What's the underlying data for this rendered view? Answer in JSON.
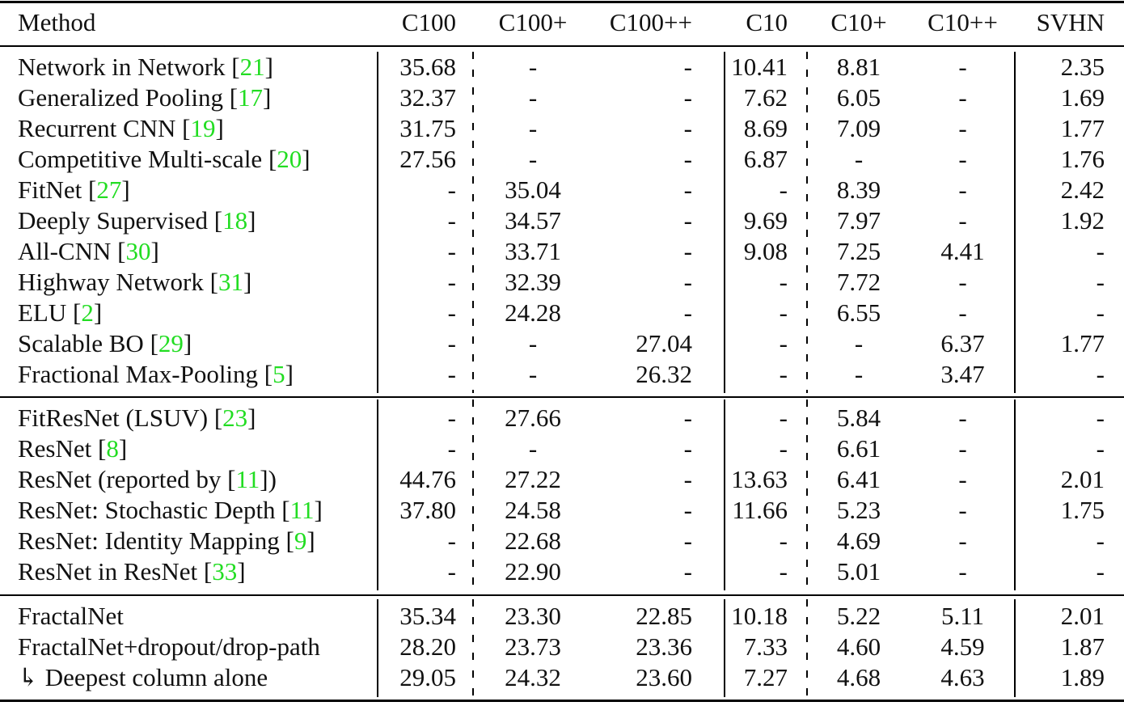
{
  "table": {
    "headers": [
      "Method",
      "C100",
      "C100+",
      "C100++",
      "C10",
      "C10+",
      "C10++",
      "SVHN"
    ],
    "cite_color": "#22dd22",
    "sections": [
      {
        "rows": [
          {
            "method": "Network in Network [",
            "cite": "21",
            "suffix": "]",
            "values": [
              "35.68",
              "-",
              "-",
              "10.41",
              "8.81",
              "-",
              "2.35"
            ]
          },
          {
            "method": "Generalized Pooling [",
            "cite": "17",
            "suffix": "]",
            "values": [
              "32.37",
              "-",
              "-",
              "7.62",
              "6.05",
              "-",
              "1.69"
            ]
          },
          {
            "method": "Recurrent CNN [",
            "cite": "19",
            "suffix": "]",
            "values": [
              "31.75",
              "-",
              "-",
              "8.69",
              "7.09",
              "-",
              "1.77"
            ]
          },
          {
            "method": "Competitive Multi-scale [",
            "cite": "20",
            "suffix": "]",
            "values": [
              "27.56",
              "-",
              "-",
              "6.87",
              "-",
              "-",
              "1.76"
            ]
          },
          {
            "method": "FitNet [",
            "cite": "27",
            "suffix": "]",
            "values": [
              "-",
              "35.04",
              "-",
              "-",
              "8.39",
              "-",
              "2.42"
            ]
          },
          {
            "method": "Deeply Supervised [",
            "cite": "18",
            "suffix": "]",
            "values": [
              "-",
              "34.57",
              "-",
              "9.69",
              "7.97",
              "-",
              "1.92"
            ]
          },
          {
            "method": "All-CNN [",
            "cite": "30",
            "suffix": "]",
            "values": [
              "-",
              "33.71",
              "-",
              "9.08",
              "7.25",
              "4.41",
              "-"
            ]
          },
          {
            "method": "Highway Network [",
            "cite": "31",
            "suffix": "]",
            "values": [
              "-",
              "32.39",
              "-",
              "-",
              "7.72",
              "-",
              "-"
            ]
          },
          {
            "method": "ELU [",
            "cite": "2",
            "suffix": "]",
            "values": [
              "-",
              "24.28",
              "-",
              "-",
              "6.55",
              "-",
              "-"
            ]
          },
          {
            "method": "Scalable BO [",
            "cite": "29",
            "suffix": "]",
            "values": [
              "-",
              "-",
              "27.04",
              "-",
              "-",
              "6.37",
              "1.77"
            ]
          },
          {
            "method": "Fractional Max-Pooling [",
            "cite": "5",
            "suffix": "]",
            "values": [
              "-",
              "-",
              "26.32",
              "-",
              "-",
              "3.47",
              "-"
            ]
          }
        ]
      },
      {
        "rows": [
          {
            "method": "FitResNet (LSUV) [",
            "cite": "23",
            "suffix": "]",
            "values": [
              "-",
              "27.66",
              "-",
              "-",
              "5.84",
              "-",
              "-"
            ]
          },
          {
            "method": "ResNet [",
            "cite": "8",
            "suffix": "]",
            "values": [
              "-",
              "-",
              "-",
              "-",
              "6.61",
              "-",
              "-"
            ]
          },
          {
            "method": "ResNet (reported by [",
            "cite": "11",
            "suffix": "])",
            "values": [
              "44.76",
              "27.22",
              "-",
              "13.63",
              "6.41",
              "-",
              "2.01"
            ]
          },
          {
            "method": "ResNet: Stochastic Depth [",
            "cite": "11",
            "suffix": "]",
            "values": [
              "37.80",
              "24.58",
              "-",
              "11.66",
              "5.23",
              "-",
              "1.75"
            ]
          },
          {
            "method": "ResNet: Identity Mapping [",
            "cite": "9",
            "suffix": "]",
            "values": [
              "-",
              "22.68",
              "-",
              "-",
              "4.69",
              "-",
              "-"
            ]
          },
          {
            "method": "ResNet in ResNet [",
            "cite": "33",
            "suffix": "]",
            "values": [
              "-",
              "22.90",
              "-",
              "-",
              "5.01",
              "-",
              "-"
            ]
          }
        ]
      },
      {
        "rows": [
          {
            "method": "FractalNet",
            "cite": "",
            "suffix": "",
            "values": [
              "35.34",
              "23.30",
              "22.85",
              "10.18",
              "5.22",
              "5.11",
              "2.01"
            ]
          },
          {
            "method": "FractalNet+dropout/drop-path",
            "cite": "",
            "suffix": "",
            "values": [
              "28.20",
              "23.73",
              "23.36",
              "7.33",
              "4.60",
              "4.59",
              "1.87"
            ]
          },
          {
            "method": "↳ Deepest column alone",
            "cite": "",
            "suffix": "",
            "values": [
              "29.05",
              "24.32",
              "23.60",
              "7.27",
              "4.68",
              "4.63",
              "1.89"
            ]
          }
        ]
      }
    ]
  }
}
